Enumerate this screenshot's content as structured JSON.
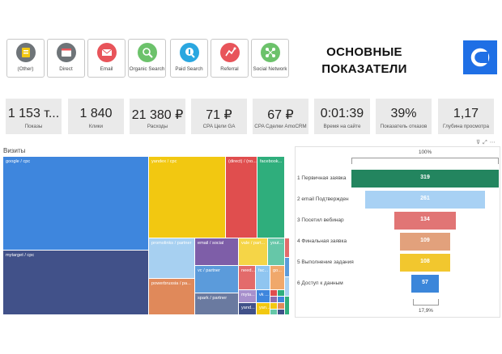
{
  "header": {
    "title_line1": "ОСНОВНЫЕ",
    "title_line2": "ПОКАЗАТЕЛИ"
  },
  "channels": [
    {
      "label": "(Other)",
      "icon": "other-channel-icon",
      "color": "#6e7478"
    },
    {
      "label": "Direct",
      "icon": "browser-window-icon",
      "color": "#6e7478"
    },
    {
      "label": "Email",
      "icon": "envelope-icon",
      "color": "#e8545a"
    },
    {
      "label": "Organic Search",
      "icon": "magnifier-icon",
      "color": "#6cc26b"
    },
    {
      "label": "Paid Search",
      "icon": "paid-search-icon",
      "color": "#2aa7e0"
    },
    {
      "label": "Referral",
      "icon": "referral-icon",
      "color": "#e8545a"
    },
    {
      "label": "Social Network",
      "icon": "social-network-icon",
      "color": "#6cc26b"
    }
  ],
  "kpis": [
    {
      "value": "1 153 т...",
      "caption": "Показы"
    },
    {
      "value": "1 840",
      "caption": "Клики"
    },
    {
      "value": "21 380 ₽",
      "caption": "Расходы"
    },
    {
      "value": "71 ₽",
      "caption": "CPA Цели GA"
    },
    {
      "value": "67 ₽",
      "caption": "CPA Сделки AmoCRM"
    },
    {
      "value": "0:01:39",
      "caption": "Время на сайте"
    },
    {
      "value": "39%",
      "caption": "Показатель отказов"
    },
    {
      "value": "1,17",
      "caption": "Глубина просмотра"
    }
  ],
  "treemap": {
    "title": "Визиты",
    "tiles": [
      {
        "label": "google / cpc",
        "color": "#3e86dd"
      },
      {
        "label": "mytarget / cpc",
        "color": "#415189"
      },
      {
        "label": "yandex / cpc",
        "color": "#f2c811"
      },
      {
        "label": "(direct) / (no...",
        "color": "#e04e4e"
      },
      {
        "label": "facebook...",
        "color": "#2fae7c"
      },
      {
        "label": "promolinks / partner",
        "color": "#a7d0f1"
      },
      {
        "label": "powerbrussia / pa...",
        "color": "#e0895a"
      },
      {
        "label": "email / social",
        "color": "#7e5ea8"
      },
      {
        "label": "vc / partner",
        "color": "#5b9bdb"
      },
      {
        "label": "spark / partner",
        "color": "#6a7aa0"
      },
      {
        "label": "vale / part...",
        "color": "#f5d547"
      },
      {
        "label": "yout...",
        "color": "#66c7a8"
      },
      {
        "label": "need...",
        "color": "#e36b6b"
      },
      {
        "label": "fac...",
        "color": "#8fc5f0"
      },
      {
        "label": "go...",
        "color": "#f0a86b"
      },
      {
        "label": "myta...",
        "color": "#a890cc"
      },
      {
        "label": "vk ...",
        "color": "#3e86dd"
      },
      {
        "label": "yand...",
        "color": "#415189"
      },
      {
        "label": "yan...",
        "color": "#f2c811"
      }
    ],
    "filler_colors": [
      "#e04e4e",
      "#2fae7c",
      "#8c6bb1",
      "#3e86dd",
      "#f2c811",
      "#e0895a",
      "#66c7a8",
      "#415189",
      "#e36b6b",
      "#5b9bdb",
      "#a7d0f1",
      "#2fae7c"
    ]
  },
  "funnel": {
    "top_percent": "100%",
    "bottom_percent": "17,9%",
    "stages": [
      {
        "label": "1 Первичная заявка",
        "value": 319,
        "color": "#23855f"
      },
      {
        "label": "2 email Подтвержден",
        "value": 261,
        "color": "#a8d1f4"
      },
      {
        "label": "3 Посетил вебинар",
        "value": 134,
        "color": "#e17575"
      },
      {
        "label": "4 Финальная заявка",
        "value": 109,
        "color": "#e2a17c"
      },
      {
        "label": "5 Выполнение задания",
        "value": 108,
        "color": "#f2c72e"
      },
      {
        "label": "6 Доступ к данным",
        "value": 57,
        "color": "#3b86da"
      }
    ]
  }
}
